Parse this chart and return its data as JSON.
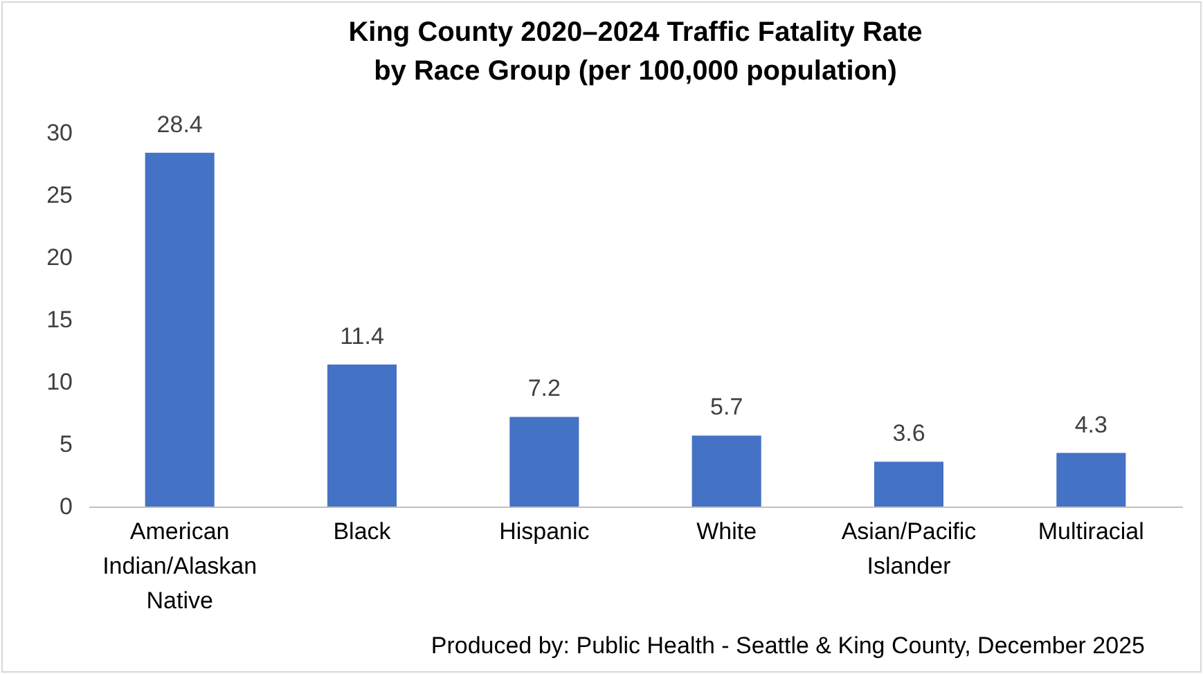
{
  "chart_data": {
    "type": "bar",
    "title": "King County 2020–2024 Traffic Fatality Rate by Race Group (per 100,000 population)",
    "categories": [
      "American Indian/Alaskan Native",
      "Black",
      "Hispanic",
      "White",
      "Asian/Pacific Islander",
      "Multiracial"
    ],
    "values": [
      28.4,
      11.4,
      7.2,
      5.7,
      3.6,
      4.3
    ],
    "color": "#4472c4",
    "ylim": [
      0,
      30
    ],
    "yticks": [
      0,
      5,
      10,
      15,
      20,
      25,
      30
    ],
    "data_labels": true,
    "annotations": [
      "Produced by: Public Health - Seattle & King County, December 2025"
    ]
  }
}
